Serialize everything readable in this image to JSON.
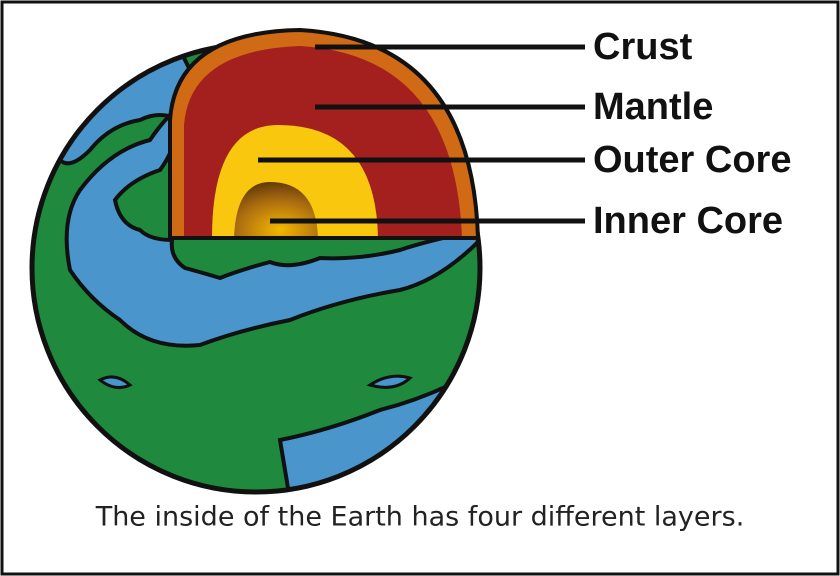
{
  "labels": [
    "Crust",
    "Mantle",
    "Outer Core",
    "Inner Core"
  ],
  "caption": "The inside of the Earth has four different layers."
}
